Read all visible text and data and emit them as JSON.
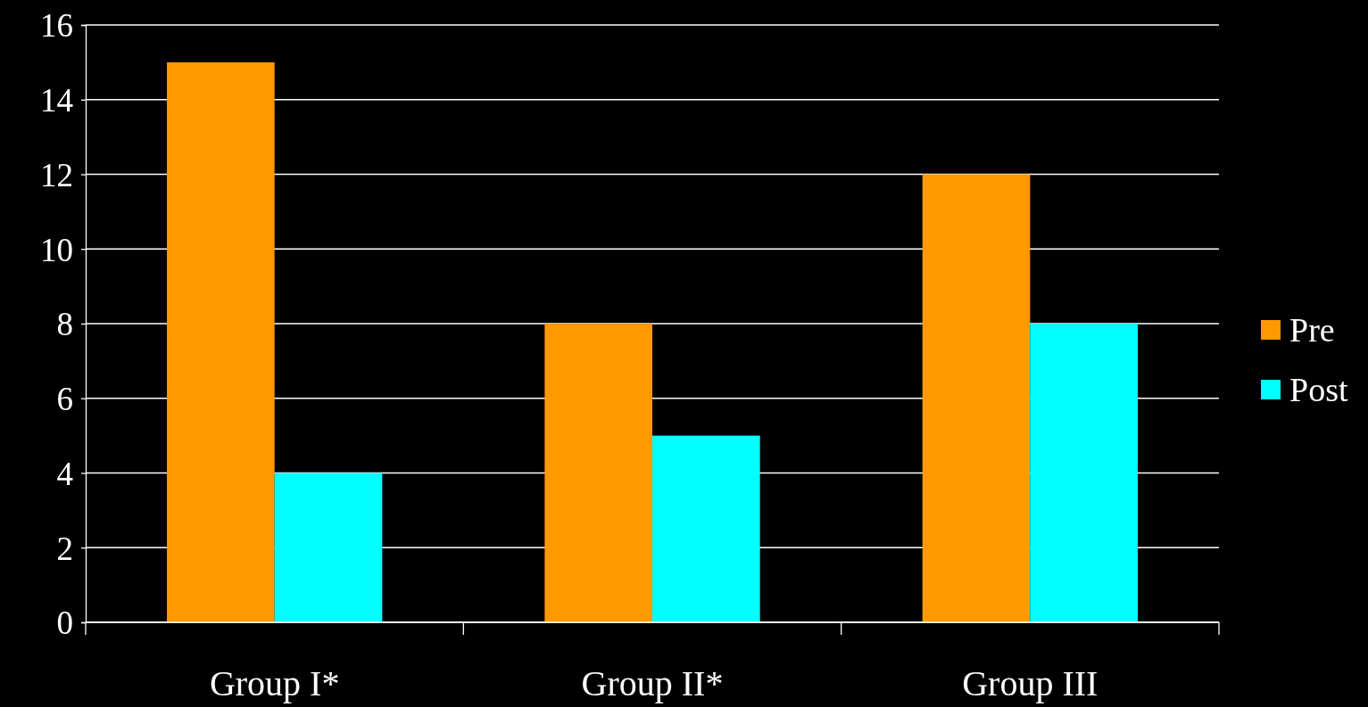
{
  "chart_data": {
    "type": "bar",
    "categories": [
      "Group I*",
      "Group II*",
      "Group III"
    ],
    "series": [
      {
        "name": "Pre",
        "color": "#ff9900",
        "values": [
          15,
          8,
          12
        ]
      },
      {
        "name": "Post",
        "color": "#00ffff",
        "values": [
          4,
          5,
          8
        ]
      }
    ],
    "ylim": [
      0,
      16
    ],
    "yticks": [
      0,
      2,
      4,
      6,
      8,
      10,
      12,
      14,
      16
    ],
    "grid": "y",
    "legend": "right"
  }
}
